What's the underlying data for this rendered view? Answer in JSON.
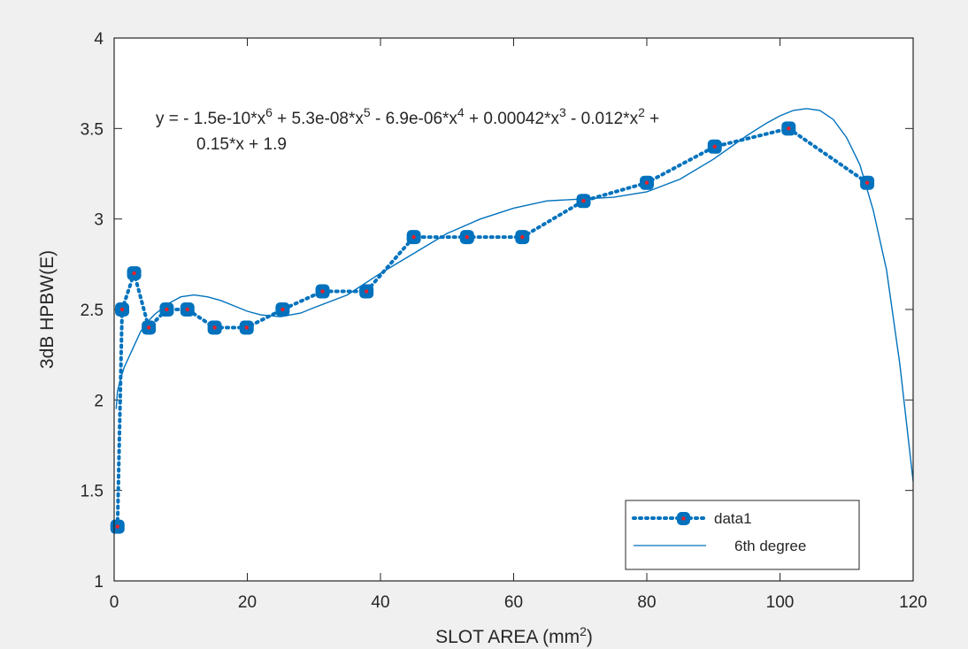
{
  "chart_data": {
    "type": "line",
    "title": "",
    "xlabel": "SLOT AREA (mm",
    "xlabel_sup": "2",
    "xlabel_tail": ")",
    "ylabel": "3dB HPBW(E)",
    "xlim": [
      0,
      120
    ],
    "ylim": [
      1,
      4
    ],
    "xticks": [
      0,
      20,
      40,
      60,
      80,
      100,
      120
    ],
    "yticks": [
      1,
      1.5,
      2,
      2.5,
      3,
      3.5,
      4
    ],
    "grid": false,
    "legend_position": "bottom-right",
    "series": [
      {
        "name": "data1",
        "style": "dotted line with square markers",
        "line_color": "#0072bd",
        "marker_face": "#0072bd",
        "marker_center": "#e8202a",
        "x": [
          0.5,
          1.2,
          3,
          5.2,
          7.9,
          11,
          15.1,
          19.9,
          25.3,
          31.3,
          37.9,
          45,
          53,
          61.3,
          70.5,
          80,
          90.2,
          101.3,
          113.1
        ],
        "y": [
          1.3,
          2.5,
          2.7,
          2.4,
          2.5,
          2.5,
          2.4,
          2.4,
          2.5,
          2.6,
          2.6,
          2.9,
          2.9,
          2.9,
          3.1,
          3.2,
          3.4,
          3.5,
          3.2
        ]
      },
      {
        "name": "6th degree",
        "style": "thin solid line",
        "line_color": "#0072bd",
        "x": [
          0.3,
          0.5,
          1,
          1.5,
          2,
          3,
          4,
          5,
          6,
          8,
          10,
          12,
          14,
          16,
          18,
          20,
          22,
          25,
          28,
          30,
          35,
          40,
          45,
          50,
          55,
          60,
          65,
          70,
          75,
          80,
          85,
          90,
          95,
          98,
          100,
          102,
          104,
          106,
          108,
          110,
          112,
          114,
          116,
          118,
          120
        ],
        "y": [
          1.95,
          2.05,
          2.12,
          2.18,
          2.22,
          2.3,
          2.38,
          2.43,
          2.47,
          2.53,
          2.57,
          2.58,
          2.57,
          2.55,
          2.52,
          2.49,
          2.47,
          2.46,
          2.48,
          2.51,
          2.58,
          2.7,
          2.81,
          2.92,
          3.0,
          3.06,
          3.1,
          3.11,
          3.12,
          3.15,
          3.22,
          3.33,
          3.46,
          3.53,
          3.57,
          3.6,
          3.61,
          3.6,
          3.55,
          3.45,
          3.3,
          3.05,
          2.72,
          2.2,
          1.55
        ]
      }
    ],
    "annotation": {
      "line1": [
        {
          "t": "y = - 1.5e-10*x"
        },
        {
          "t": "6",
          "sup": true
        },
        {
          "t": " + 5.3e-08*x"
        },
        {
          "t": "5",
          "sup": true
        },
        {
          "t": " - 6.9e-06*x"
        },
        {
          "t": "4",
          "sup": true
        },
        {
          "t": " + 0.00042*x"
        },
        {
          "t": "3",
          "sup": true
        },
        {
          "t": " - 0.012*x"
        },
        {
          "t": "2",
          "sup": true
        },
        {
          "t": " +"
        }
      ],
      "line2": "0.15*x + 1.9"
    }
  }
}
